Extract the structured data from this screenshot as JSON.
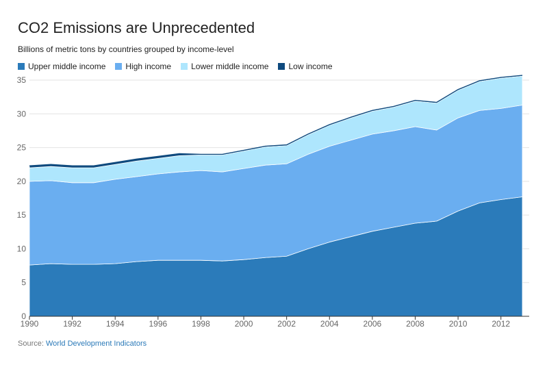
{
  "title": "CO2 Emissions are Unprecedented",
  "subtitle": "Billions of metric tons by countries grouped by income-level",
  "source": {
    "label": "Source:",
    "link_text": "World Development Indicators"
  },
  "chart_data": {
    "type": "area",
    "stacked": true,
    "title": "CO2 Emissions are Unprecedented",
    "subtitle": "Billions of metric tons by countries grouped by income-level",
    "xlabel": "",
    "ylabel": "",
    "x": [
      1990,
      1991,
      1992,
      1993,
      1994,
      1995,
      1996,
      1997,
      1998,
      1999,
      2000,
      2001,
      2002,
      2003,
      2004,
      2005,
      2006,
      2007,
      2008,
      2009,
      2010,
      2011,
      2012,
      2013
    ],
    "xlim": [
      1990,
      2013
    ],
    "ylim": [
      0,
      35
    ],
    "x_ticks": [
      "1990",
      "1992",
      "1994",
      "1996",
      "1998",
      "2000",
      "2002",
      "2004",
      "2006",
      "2008",
      "2010",
      "2012"
    ],
    "x_tick_values": [
      1990,
      1992,
      1994,
      1996,
      1998,
      2000,
      2002,
      2004,
      2006,
      2008,
      2010,
      2012
    ],
    "y_ticks": [
      "0",
      "5",
      "10",
      "15",
      "20",
      "25",
      "30",
      "35"
    ],
    "y_tick_values": [
      0,
      5,
      10,
      15,
      20,
      25,
      30,
      35
    ],
    "grid": true,
    "legend_position": "top-left",
    "series": [
      {
        "name": "Upper middle income",
        "color": "#2b7bba",
        "values": [
          7.6,
          7.8,
          7.7,
          7.7,
          7.8,
          8.1,
          8.3,
          8.3,
          8.3,
          8.2,
          8.4,
          8.7,
          8.9,
          10.0,
          11.0,
          11.8,
          12.6,
          13.2,
          13.8,
          14.1,
          15.6,
          16.8,
          17.3,
          17.7
        ]
      },
      {
        "name": "High income",
        "color": "#6aaef0",
        "values": [
          12.4,
          12.3,
          12.1,
          12.1,
          12.5,
          12.6,
          12.8,
          13.1,
          13.3,
          13.2,
          13.5,
          13.7,
          13.7,
          14.0,
          14.2,
          14.3,
          14.4,
          14.3,
          14.3,
          13.5,
          13.8,
          13.7,
          13.5,
          13.6
        ]
      },
      {
        "name": "Lower middle income",
        "color": "#aee6fd",
        "values": [
          2.0,
          2.1,
          2.2,
          2.2,
          2.2,
          2.3,
          2.3,
          2.4,
          2.3,
          2.5,
          2.6,
          2.7,
          2.7,
          2.9,
          3.1,
          3.3,
          3.4,
          3.5,
          3.8,
          4.0,
          4.1,
          4.3,
          4.5,
          4.3
        ]
      },
      {
        "name": "Low income",
        "color": "#0e4a7e",
        "values": [
          0.3,
          0.3,
          0.3,
          0.3,
          0.3,
          0.3,
          0.3,
          0.3,
          0.1,
          0.1,
          0.1,
          0.1,
          0.1,
          0.1,
          0.1,
          0.1,
          0.1,
          0.1,
          0.1,
          0.1,
          0.1,
          0.1,
          0.1,
          0.1
        ]
      }
    ]
  }
}
